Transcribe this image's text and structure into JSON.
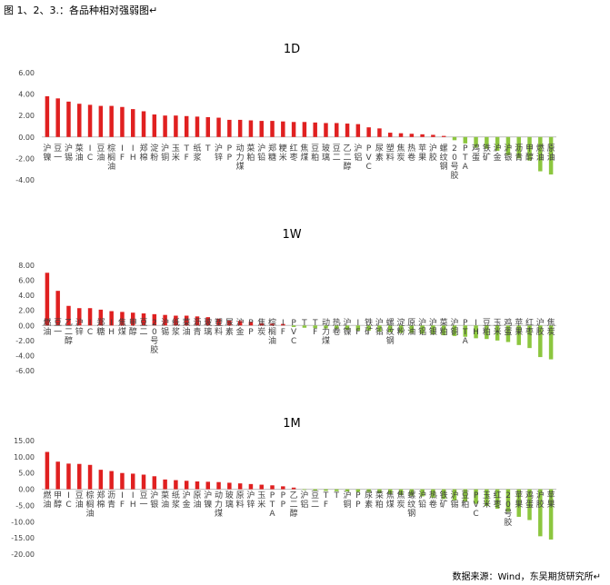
{
  "figure_caption": "图 1、2、3.：各品种相对强弱图↵",
  "source_note": "数据来源：Wind，东吴期货研究所↵",
  "colors": {
    "positive": "#e02020",
    "negative": "#8cc63f",
    "axis": "#bfbfbf",
    "text": "#404040"
  },
  "chart_data": [
    {
      "type": "bar",
      "title": "1D",
      "ylim": [
        -4,
        6
      ],
      "yticks": [
        "6.00",
        "4.00",
        "2.00",
        "0.00",
        "-2.00",
        "-4.00"
      ],
      "ytick_values": [
        6,
        4,
        2,
        0,
        -2,
        -4
      ],
      "grid": false,
      "categories": [
        "沪镍",
        "豆一",
        "沪锡",
        "菜油",
        "IC",
        "豆油",
        "棕榈油",
        "IF",
        "IH",
        "郑棉",
        "淀粉",
        "沪铜",
        "玉米",
        "TF",
        "纸浆",
        "T",
        "沪锌",
        "PP",
        "动力煤",
        "菜粕",
        "沪铅",
        "郑糖",
        "粳米",
        "红枣",
        "焦煤",
        "豆粕",
        "玻璃",
        "豆二",
        "乙二醇",
        "沪铝",
        "PVC",
        "尿素",
        "塑料",
        "焦炭",
        "热卷",
        "苹果",
        "沪胶",
        "螺纹钢",
        "20号胶",
        "PTA",
        "鸡蛋",
        "铁矿",
        "沪金",
        "沪银",
        "沥青",
        "甲醇",
        "燃油",
        "原油"
      ],
      "values": [
        3.8,
        3.6,
        3.3,
        3.1,
        3.0,
        2.9,
        2.9,
        2.8,
        2.6,
        2.4,
        2.1,
        2.0,
        2.0,
        1.95,
        1.9,
        1.85,
        1.8,
        1.6,
        1.6,
        1.55,
        1.5,
        1.5,
        1.45,
        1.4,
        1.4,
        1.35,
        1.3,
        1.3,
        1.25,
        1.2,
        0.9,
        0.8,
        0.4,
        0.35,
        0.3,
        0.25,
        0.2,
        0.1,
        -0.3,
        -0.6,
        -1.0,
        -1.1,
        -1.3,
        -1.7,
        -2.0,
        -2.2,
        -3.2,
        -3.5
      ]
    },
    {
      "type": "bar",
      "title": "1W",
      "ylim": [
        -6,
        8
      ],
      "yticks": [
        "8.00",
        "6.00",
        "4.00",
        "2.00",
        "0.00",
        "-2.00",
        "-4.00",
        "-6.00"
      ],
      "ytick_values": [
        8,
        6,
        4,
        2,
        0,
        -2,
        -4,
        -6
      ],
      "grid": false,
      "categories": [
        "燃油",
        "豆一",
        "乙二醇",
        "沪锌",
        "IC",
        "郑糖",
        "IH",
        "焦煤",
        "甲醇",
        "豆二",
        "20号胶",
        "沪锡",
        "纸浆",
        "菜油",
        "沥青",
        "玻璃",
        "塑料",
        "尿素",
        "沪金",
        "PP",
        "焦炭",
        "棕榈油",
        "IF",
        "PVC",
        "T",
        "TF",
        "动力煤",
        "热卷",
        "沪镍",
        "IF",
        "铁矿",
        "沪铅",
        "螺纹钢",
        "淀粉",
        "原油",
        "沪铝",
        "沪银",
        "菜粕",
        "沪铜",
        "PTA",
        "IH",
        "豆粕",
        "玉米",
        "鸡蛋",
        "苹果",
        "红枣",
        "沪胶",
        "焦炭"
      ],
      "values": [
        7.0,
        4.6,
        2.6,
        2.3,
        2.3,
        2.1,
        1.9,
        1.8,
        1.7,
        1.6,
        1.5,
        1.4,
        1.3,
        1.3,
        1.2,
        1.1,
        0.9,
        0.7,
        0.6,
        0.5,
        0.3,
        0.25,
        0.2,
        -0.2,
        -0.3,
        -0.35,
        -0.4,
        -0.5,
        -0.6,
        -0.7,
        -0.7,
        -0.8,
        -0.9,
        -1.0,
        -1.0,
        -1.1,
        -1.2,
        -1.3,
        -1.4,
        -1.5,
        -1.7,
        -1.8,
        -2.0,
        -2.2,
        -2.6,
        -3.0,
        -4.2,
        -4.5
      ]
    },
    {
      "type": "bar",
      "title": "1M",
      "ylim": [
        -20,
        15
      ],
      "yticks": [
        "15.00",
        "10.00",
        "5.00",
        "0.00",
        "-5.00",
        "-10.00",
        "-15.00",
        "-20.00"
      ],
      "ytick_values": [
        15,
        10,
        5,
        0,
        -5,
        -10,
        -15,
        -20
      ],
      "grid": false,
      "categories": [
        "燃油",
        "甲醇",
        "IC",
        "豆油",
        "棕榈油",
        "郑棉",
        "沥青",
        "IF",
        "IH",
        "豆一",
        "沪银",
        "菜油",
        "纸浆",
        "沪金",
        "原油",
        "沪镍",
        "动力煤",
        "玻璃",
        "原料",
        "沪锌",
        "玉米",
        "PTA",
        "PP",
        "乙二醇",
        "沪铝",
        "豆二",
        "TF",
        "T",
        "沪铜",
        "PP",
        "尿素",
        "菜粕",
        "焦煤",
        "焦炭",
        "螺纹钢",
        "沪铅",
        "热卷",
        "铁矿",
        "沪锡",
        "豆粕",
        "PVC",
        "玉米",
        "红枣",
        "20号胶",
        "苹果",
        "鸡蛋",
        "沪胶",
        "苹果"
      ],
      "values": [
        11.5,
        8.5,
        7.9,
        7.8,
        7.5,
        6.0,
        5.6,
        5.0,
        4.8,
        4.5,
        4.0,
        3.0,
        2.8,
        2.6,
        2.4,
        2.3,
        2.2,
        2.0,
        1.8,
        1.6,
        1.4,
        1.2,
        0.9,
        0.5,
        -0.2,
        -0.4,
        -0.5,
        -0.6,
        -0.7,
        -0.8,
        -0.9,
        -1.2,
        -1.5,
        -1.8,
        -2.0,
        -2.2,
        -2.6,
        -3.0,
        -3.4,
        -3.8,
        -4.5,
        -5.2,
        -6.0,
        -7.0,
        -8.5,
        -9.5,
        -14.5,
        -15.5
      ]
    }
  ]
}
